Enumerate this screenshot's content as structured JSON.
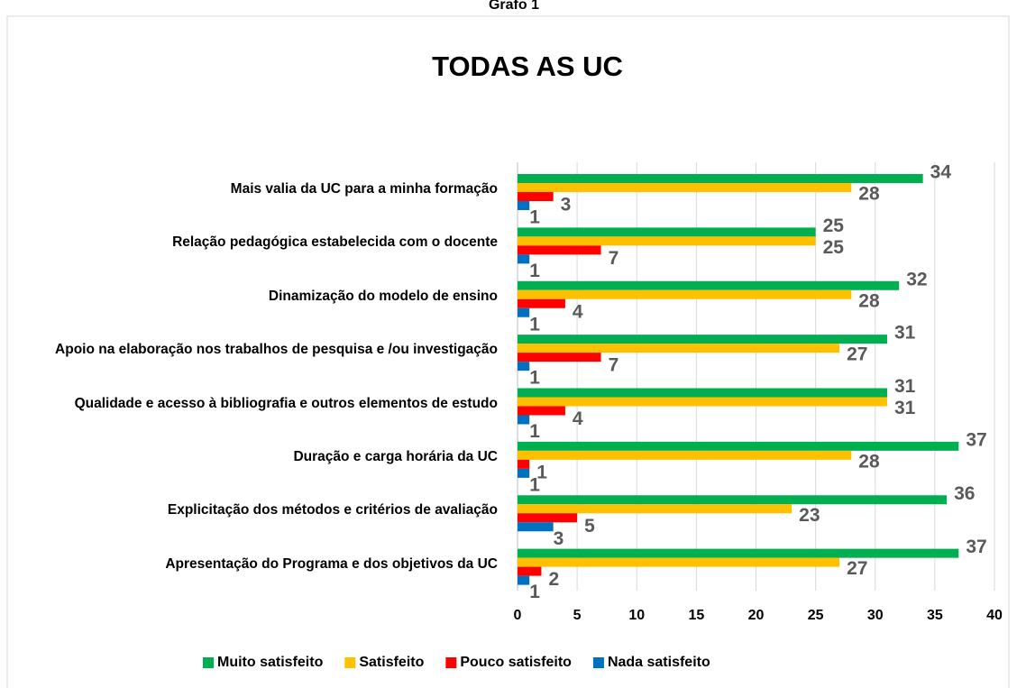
{
  "caption": "Grafo 1",
  "chart_data": {
    "type": "hbar",
    "title": "TODAS AS UC",
    "categories": [
      "Mais valia da UC para a minha formação",
      "Relação pedagógica estabelecida com o docente",
      "Dinamização do modelo de ensino",
      "Apoio na elaboração nos trabalhos de pesquisa e /ou investigação",
      "Qualidade e acesso à bibliografia e outros elementos de estudo",
      "Duração e carga horária da UC",
      "Explicitação dos métodos e critérios de avaliação",
      "Apresentação do Programa e dos objetivos da UC"
    ],
    "series": [
      {
        "name": "Muito satisfeito",
        "color": "#00b050",
        "values": [
          34,
          25,
          32,
          31,
          31,
          37,
          36,
          37
        ]
      },
      {
        "name": "Satisfeito",
        "color": "#ffc000",
        "values": [
          28,
          25,
          28,
          27,
          31,
          28,
          23,
          27
        ]
      },
      {
        "name": "Pouco satisfeito",
        "color": "#ff0000",
        "values": [
          3,
          7,
          4,
          7,
          4,
          1,
          5,
          2
        ]
      },
      {
        "name": "Nada satisfeito",
        "color": "#0070c0",
        "values": [
          1,
          1,
          1,
          1,
          1,
          1,
          3,
          1
        ]
      }
    ],
    "xlim": [
      0,
      40
    ],
    "xticks": [
      0,
      5,
      10,
      15,
      20,
      25,
      30,
      35,
      40
    ],
    "grid": true,
    "legend": "bottom"
  }
}
